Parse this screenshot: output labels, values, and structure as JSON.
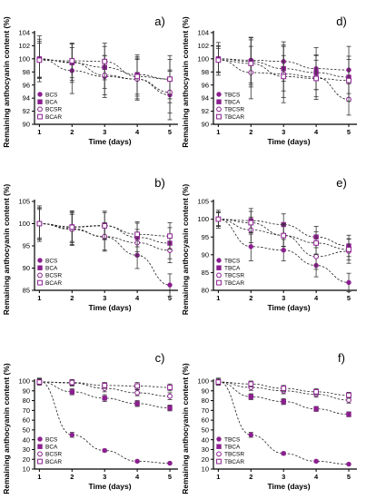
{
  "chart_data": [
    {
      "panel": "a)",
      "type": "scatter",
      "xlabel": "Time (days)",
      "ylabel": "Remaining anthocyanin content (%)",
      "ylim": [
        90,
        104
      ],
      "yticks": [
        90,
        92,
        94,
        96,
        98,
        100,
        102,
        104
      ],
      "x": [
        1,
        2,
        3,
        4,
        5
      ],
      "legend": "bottom-left",
      "series": [
        {
          "name": "BCS",
          "marker": "filled-circle",
          "values": [
            100,
            98.2,
            97.3,
            96.9,
            94.5
          ],
          "err": [
            3.5,
            3.5,
            3.2,
            3.2,
            3.8
          ]
        },
        {
          "name": "BCA",
          "marker": "filled-square",
          "values": [
            100,
            99.4,
            98.7,
            97.6,
            96.9
          ],
          "err": [
            3.0,
            3.0,
            3.2,
            3.0,
            3.6
          ]
        },
        {
          "name": "BCSR",
          "marker": "open-circle",
          "values": [
            99.9,
            99.5,
            97.5,
            96.9,
            94.9
          ],
          "err": [
            2.8,
            2.8,
            3.0,
            3.0,
            3.2
          ]
        },
        {
          "name": "BCAR",
          "marker": "open-square",
          "values": [
            99.8,
            99.7,
            99.6,
            97.3,
            96.9
          ],
          "err": [
            2.6,
            2.6,
            2.8,
            3.0,
            3.0
          ]
        }
      ]
    },
    {
      "panel": "d)",
      "type": "scatter",
      "xlabel": "Time (days)",
      "ylabel": "Remaining anthocyanin content (%)",
      "ylim": [
        90,
        104
      ],
      "yticks": [
        90,
        92,
        94,
        96,
        98,
        100,
        102,
        104
      ],
      "x": [
        1,
        2,
        3,
        4,
        5
      ],
      "legend": "bottom-left",
      "series": [
        {
          "name": "TBCS",
          "marker": "filled-circle",
          "values": [
            100,
            99.8,
            99.6,
            98.5,
            98.3
          ],
          "err": [
            2.5,
            3.5,
            3.0,
            3.2,
            3.6
          ]
        },
        {
          "name": "TBCA",
          "marker": "filled-square",
          "values": [
            100,
            99.6,
            98.5,
            97.9,
            97.2
          ],
          "err": [
            2.0,
            3.6,
            3.4,
            2.6,
            3.2
          ]
        },
        {
          "name": "TBCSR",
          "marker": "open-circle",
          "values": [
            99.9,
            97.9,
            97.7,
            97.2,
            93.8
          ],
          "err": [
            2.0,
            4.0,
            4.4,
            3.4,
            2.4
          ]
        },
        {
          "name": "TBCAR",
          "marker": "open-square",
          "values": [
            99.8,
            99.3,
            97.3,
            97.0,
            96.7
          ],
          "err": [
            1.8,
            3.6,
            3.2,
            2.8,
            3.2
          ]
        }
      ]
    },
    {
      "panel": "b)",
      "type": "scatter",
      "xlabel": "Time (days)",
      "ylabel": "Remaining anthocyanin content (%)",
      "ylim": [
        85,
        105
      ],
      "yticks": [
        85,
        90,
        95,
        100,
        105
      ],
      "x": [
        1,
        2,
        3,
        4,
        5
      ],
      "legend": "bottom-left",
      "series": [
        {
          "name": "BCS",
          "marker": "filled-circle",
          "values": [
            100,
            98.9,
            97.0,
            92.9,
            86.2
          ],
          "err": [
            4.0,
            3.8,
            3.2,
            3.0,
            2.5
          ]
        },
        {
          "name": "BCA",
          "marker": "filled-square",
          "values": [
            100,
            99.3,
            99.6,
            96.9,
            95.6
          ],
          "err": [
            3.6,
            3.6,
            3.2,
            3.2,
            3.5
          ]
        },
        {
          "name": "BCSR",
          "marker": "open-circle",
          "values": [
            100,
            98.7,
            97.1,
            95.7,
            94.0
          ],
          "err": [
            3.5,
            3.4,
            3.0,
            3.0,
            2.8
          ]
        },
        {
          "name": "BCAR",
          "marker": "open-square",
          "values": [
            100,
            99.2,
            99.5,
            97.6,
            97.2
          ],
          "err": [
            3.2,
            3.2,
            3.0,
            2.8,
            3.0
          ]
        }
      ]
    },
    {
      "panel": "e)",
      "type": "scatter",
      "xlabel": "Time (days)",
      "ylabel": "Remaining anthocyanin content (%)",
      "ylim": [
        80,
        105
      ],
      "yticks": [
        80,
        85,
        90,
        95,
        100,
        105
      ],
      "x": [
        1,
        2,
        3,
        4,
        5
      ],
      "legend": "bottom-left",
      "series": [
        {
          "name": "TBCS",
          "marker": "filled-circle",
          "values": [
            100,
            92.3,
            91.3,
            87.0,
            82.2
          ],
          "err": [
            2.5,
            4.0,
            3.0,
            3.2,
            2.6
          ]
        },
        {
          "name": "TBCA",
          "marker": "filled-square",
          "values": [
            100,
            99.6,
            98.5,
            95.0,
            92.5
          ],
          "err": [
            2.0,
            3.4,
            3.0,
            3.0,
            3.0
          ]
        },
        {
          "name": "TBCSR",
          "marker": "open-circle",
          "values": [
            100,
            97.0,
            95.5,
            89.5,
            91.0
          ],
          "err": [
            2.0,
            3.6,
            3.2,
            3.6,
            3.4
          ]
        },
        {
          "name": "TBCAR",
          "marker": "open-square",
          "values": [
            100,
            99.0,
            95.4,
            93.3,
            91.5
          ],
          "err": [
            1.8,
            3.2,
            3.0,
            3.2,
            3.0
          ]
        }
      ]
    },
    {
      "panel": "c)",
      "type": "scatter",
      "xlabel": "Time (days)",
      "ylabel": "Remaining anthocyanin content (%)",
      "ylim": [
        10,
        100
      ],
      "yticks": [
        10,
        20,
        30,
        40,
        50,
        60,
        70,
        80,
        90,
        100
      ],
      "x": [
        1,
        2,
        3,
        4,
        5
      ],
      "legend": "bottom-left",
      "series": [
        {
          "name": "BCS",
          "marker": "filled-circle",
          "values": [
            100,
            45.0,
            29.0,
            18.0,
            16.0
          ],
          "err": [
            3.0,
            2.5,
            1.5,
            1.2,
            1.0
          ]
        },
        {
          "name": "BCA",
          "marker": "filled-square",
          "values": [
            99.5,
            89.0,
            82.5,
            77.0,
            72.5
          ],
          "err": [
            3.0,
            3.0,
            3.5,
            3.0,
            3.0
          ]
        },
        {
          "name": "BCSR",
          "marker": "open-circle",
          "values": [
            99.0,
            98.0,
            92.5,
            88.0,
            84.5
          ],
          "err": [
            3.0,
            3.0,
            3.5,
            3.0,
            3.5
          ]
        },
        {
          "name": "BCAR",
          "marker": "open-square",
          "values": [
            99.0,
            98.5,
            95.5,
            95.0,
            93.5
          ],
          "err": [
            3.0,
            3.0,
            3.0,
            3.5,
            3.5
          ]
        }
      ]
    },
    {
      "panel": "f)",
      "type": "scatter",
      "xlabel": "Time (days)",
      "ylabel": "Remaining anthocyanin content (%)",
      "ylim": [
        10,
        100
      ],
      "yticks": [
        10,
        20,
        30,
        40,
        50,
        60,
        70,
        80,
        90,
        100
      ],
      "x": [
        1,
        2,
        3,
        4,
        5
      ],
      "legend": "bottom-left",
      "series": [
        {
          "name": "TBCS",
          "marker": "filled-circle",
          "values": [
            100,
            45.0,
            26.0,
            18.0,
            15.0
          ],
          "err": [
            3.0,
            2.5,
            1.5,
            1.2,
            1.0
          ]
        },
        {
          "name": "TBCA",
          "marker": "filled-square",
          "values": [
            99.0,
            84.0,
            79.0,
            71.5,
            66.0
          ],
          "err": [
            3.0,
            3.0,
            3.0,
            2.5,
            2.5
          ]
        },
        {
          "name": "TBCSR",
          "marker": "open-circle",
          "values": [
            99.0,
            93.5,
            90.0,
            86.5,
            80.5
          ],
          "err": [
            3.0,
            3.0,
            3.0,
            3.0,
            3.0
          ]
        },
        {
          "name": "TBCAR",
          "marker": "open-square",
          "values": [
            99.0,
            97.0,
            92.5,
            89.0,
            85.5
          ],
          "err": [
            3.0,
            3.0,
            3.0,
            3.0,
            3.0
          ]
        }
      ]
    }
  ],
  "colors": {
    "marker": "#8b1f8f",
    "axis": "#000000",
    "fit_line": "#222222"
  }
}
